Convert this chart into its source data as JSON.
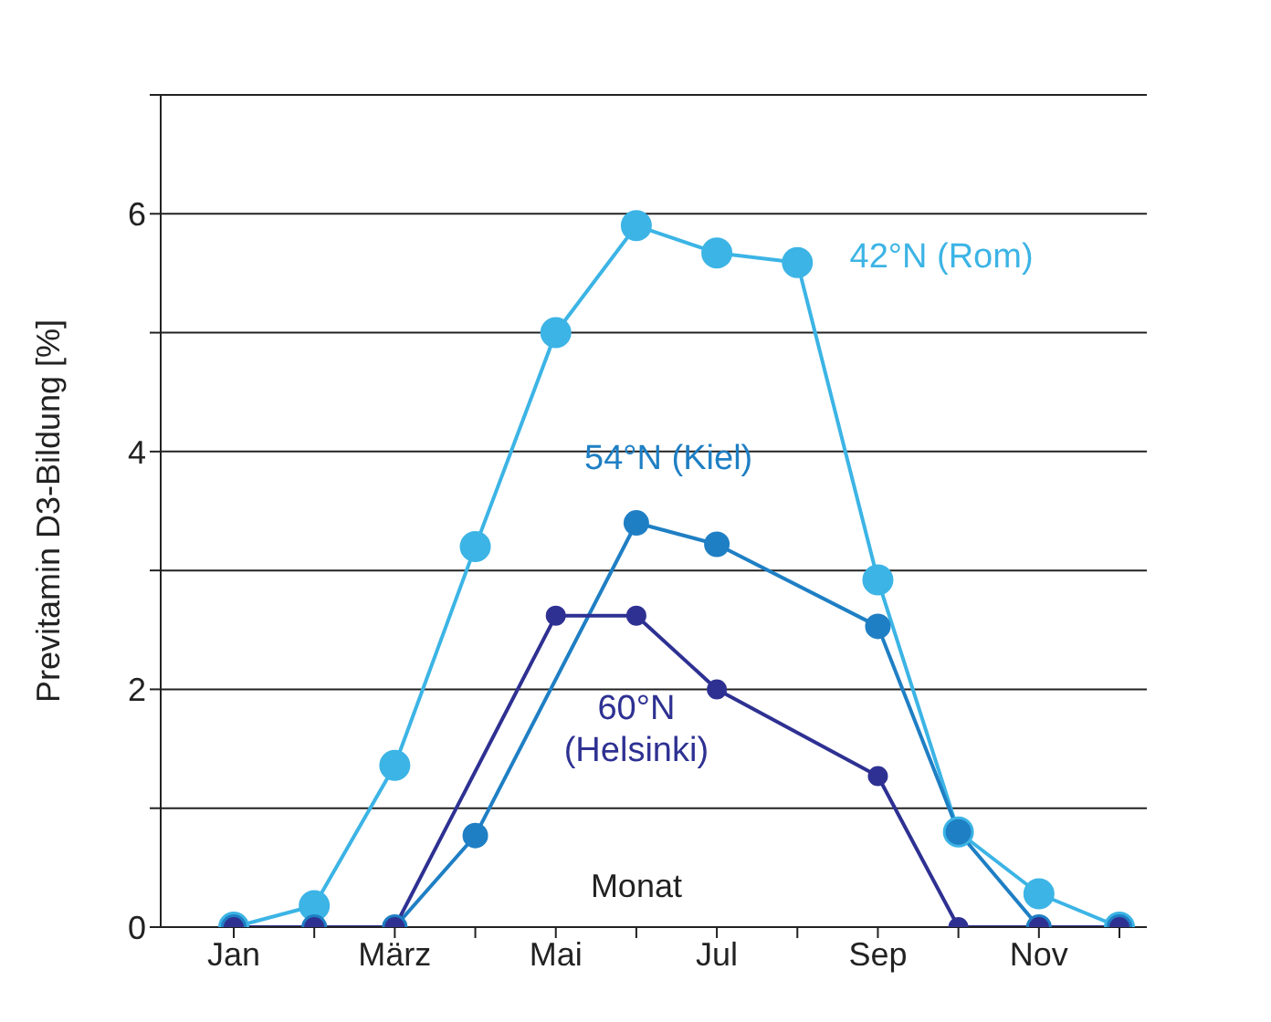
{
  "chart_data": {
    "type": "line",
    "xlabel": "Monat",
    "ylabel": "Previtamin D3-Bildung [%]",
    "categories": [
      "Jan",
      null,
      "März",
      null,
      "Mai",
      null,
      "Jul",
      null,
      "Sep",
      null,
      "Nov",
      null
    ],
    "series": [
      {
        "name": "42°N (Rom)",
        "color": "#3cb4e5",
        "values": [
          0,
          0.18,
          1.36,
          3.2,
          5.0,
          5.9,
          5.67,
          5.59,
          2.92,
          0.8,
          0.28,
          0
        ]
      },
      {
        "name": "54°N (Kiel)",
        "color": "#1f7fc4",
        "values": [
          0,
          0,
          0,
          0.77,
          null,
          3.4,
          3.22,
          null,
          2.53,
          0.8,
          0,
          0
        ]
      },
      {
        "name": "60°N (Helsinki)",
        "color": "#2e3192",
        "values": [
          0,
          0,
          0,
          null,
          2.62,
          2.62,
          2.0,
          null,
          1.27,
          0,
          0,
          0
        ]
      }
    ],
    "ylim": [
      0,
      7
    ],
    "yticks": [
      0,
      {
        "value": 1,
        "label": null
      },
      2,
      {
        "value": 3,
        "label": null
      },
      4,
      {
        "value": 5,
        "label": null
      },
      6,
      {
        "value": 7,
        "label": null
      }
    ],
    "grid": "y",
    "marker": "circle",
    "line_style": "solid",
    "legend": false
  }
}
